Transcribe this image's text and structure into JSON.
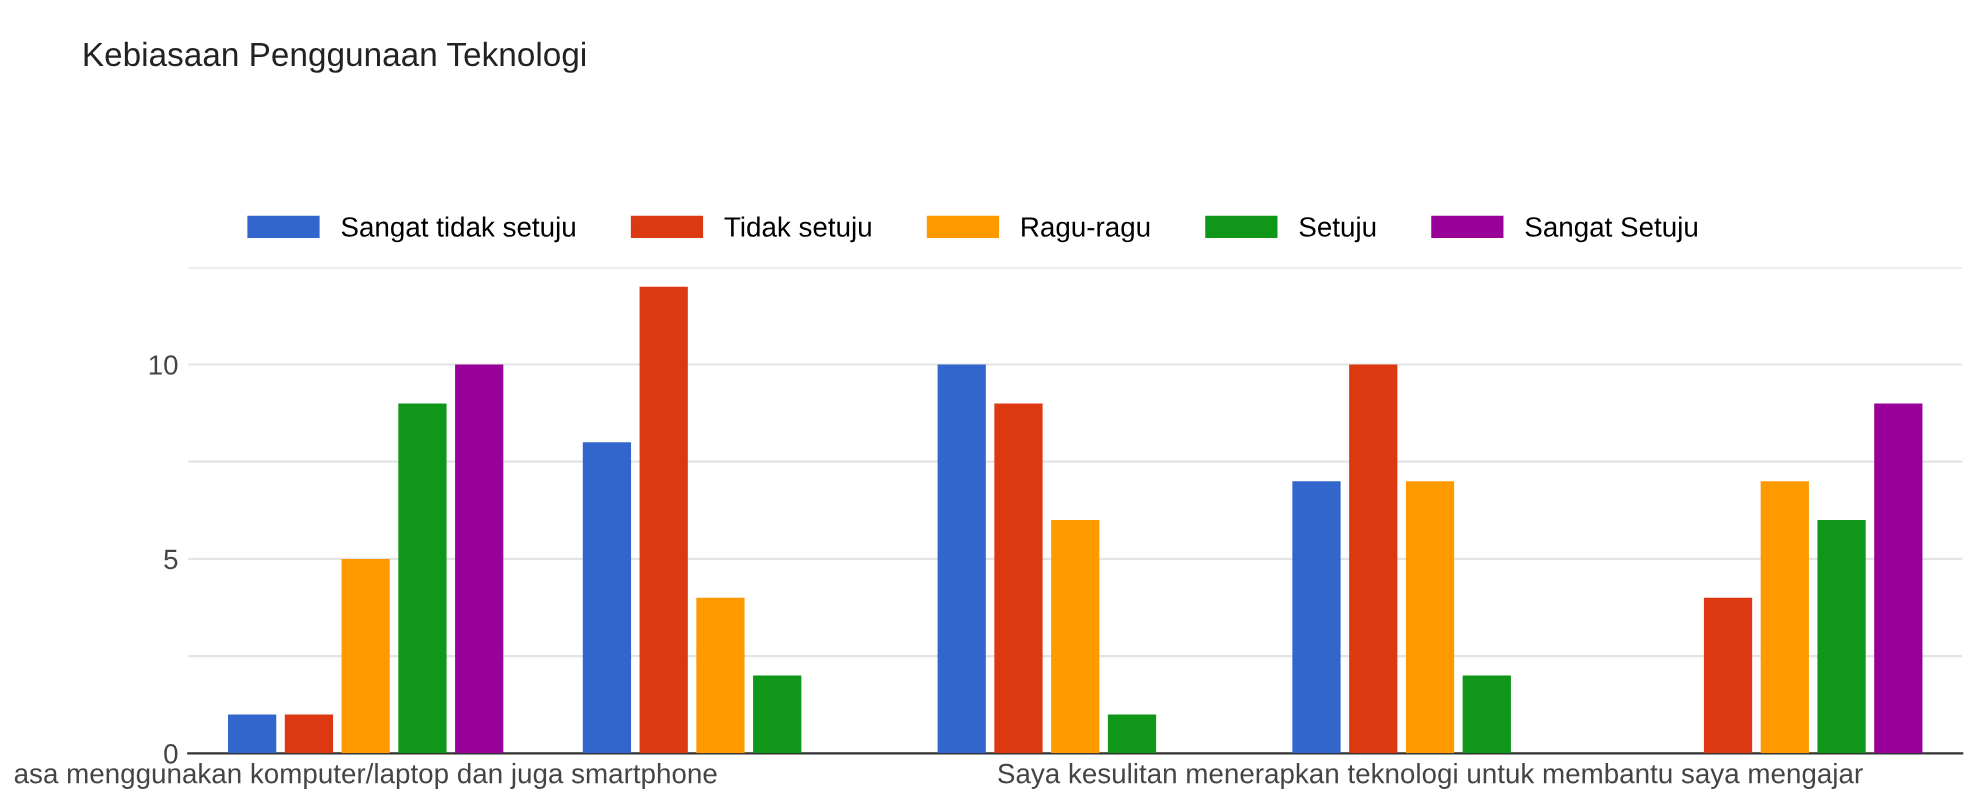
{
  "chart_data": {
    "type": "bar",
    "title": "Kebiasaan Penggunaan Teknologi",
    "categories": [
      "asa menggunakan komputer/laptop dan juga smartphone",
      null,
      null,
      "Saya kesulitan menerapkan teknologi untuk membantu saya mengajar",
      null
    ],
    "series": [
      {
        "name": "Sangat tidak setuju",
        "color": "#3366cc",
        "values": [
          1,
          8,
          10,
          7,
          0
        ]
      },
      {
        "name": "Tidak setuju",
        "color": "#dc3912",
        "values": [
          1,
          12,
          9,
          10,
          4
        ]
      },
      {
        "name": "Ragu-ragu",
        "color": "#ff9900",
        "values": [
          5,
          4,
          6,
          7,
          7
        ]
      },
      {
        "name": "Setuju",
        "color": "#109618",
        "values": [
          9,
          2,
          1,
          2,
          6
        ]
      },
      {
        "name": "Sangat Setuju",
        "color": "#990099",
        "values": [
          10,
          0,
          0,
          0,
          9
        ]
      }
    ],
    "ylim": [
      0,
      12.5
    ],
    "yticks": [
      0,
      {
        "value": 2.5,
        "label": null
      },
      5,
      {
        "value": 7.5,
        "label": null
      },
      10,
      {
        "value": 12.5,
        "label": null
      }
    ],
    "grid": "y",
    "legend": "top left"
  }
}
